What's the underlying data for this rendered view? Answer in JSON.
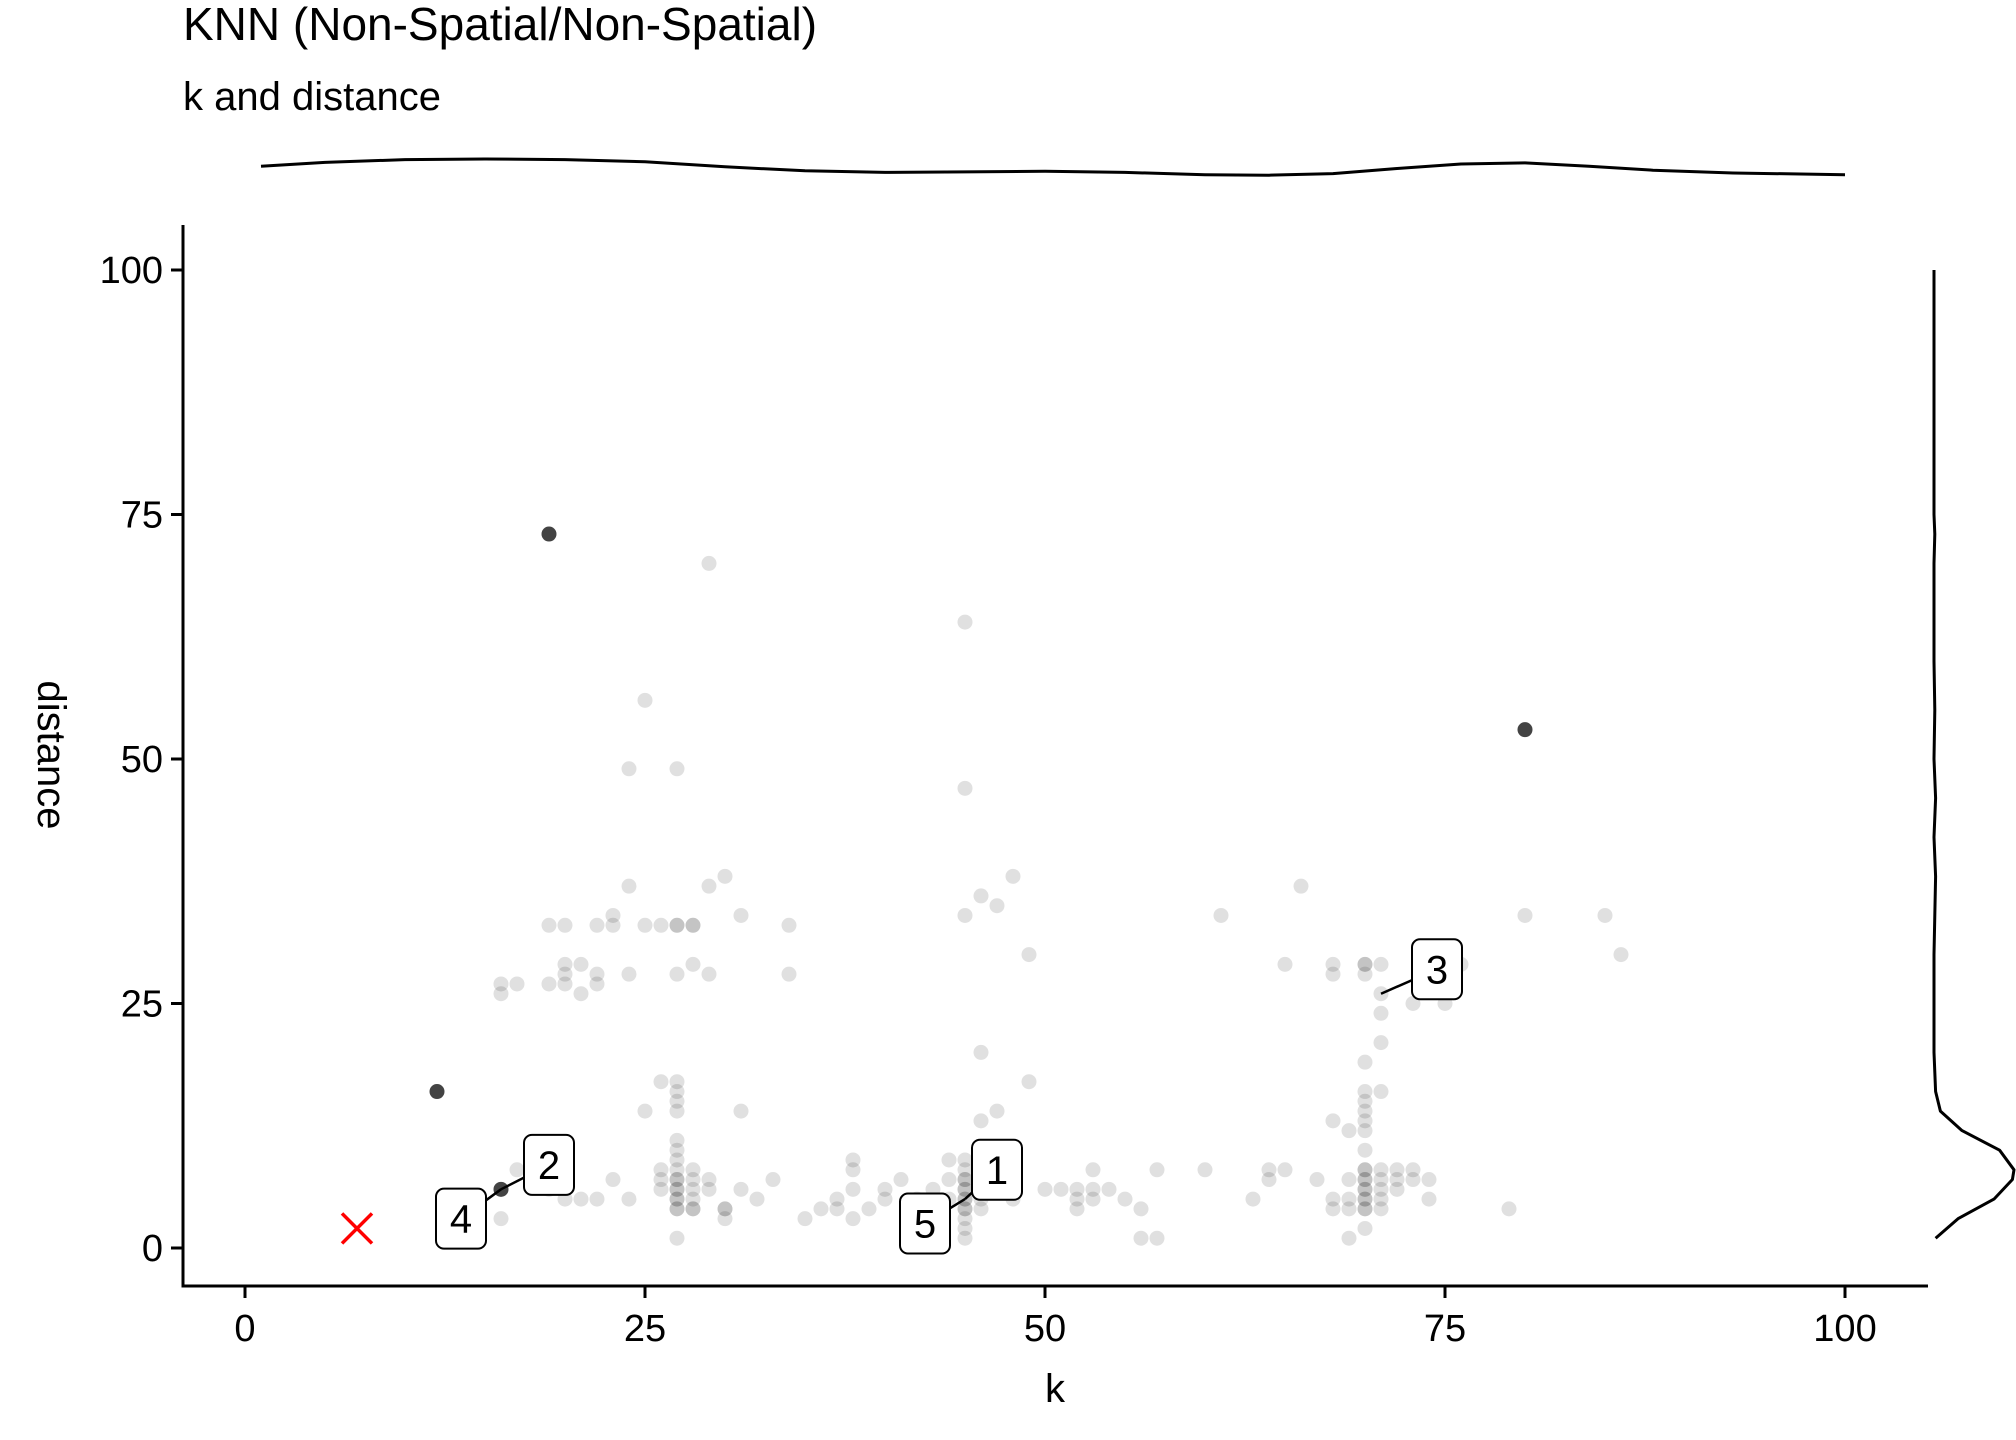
{
  "chart_data": {
    "type": "scatter",
    "title": "KNN (Non-Spatial/Non-Spatial)",
    "subtitle": "k and distance",
    "xlabel": "k",
    "ylabel": "distance",
    "xlim": [
      -2,
      105
    ],
    "ylim": [
      -4,
      105
    ],
    "xticks": [
      0,
      25,
      50,
      75,
      100
    ],
    "yticks": [
      0,
      25,
      50,
      75,
      100
    ],
    "grid": false,
    "marginal_density": [
      "top",
      "right"
    ],
    "point_color": "#000000",
    "point_alpha": 0.12,
    "points": [
      [
        12,
        16
      ],
      [
        16,
        6
      ],
      [
        16,
        3
      ],
      [
        16,
        26
      ],
      [
        16,
        27
      ],
      [
        17,
        27
      ],
      [
        17,
        8
      ],
      [
        18,
        7
      ],
      [
        19,
        73
      ],
      [
        19,
        6
      ],
      [
        19,
        27
      ],
      [
        19,
        33
      ],
      [
        20,
        5
      ],
      [
        20,
        27
      ],
      [
        20,
        28
      ],
      [
        20,
        29
      ],
      [
        20,
        33
      ],
      [
        21,
        5
      ],
      [
        21,
        26
      ],
      [
        21,
        29
      ],
      [
        22,
        5
      ],
      [
        22,
        27
      ],
      [
        22,
        28
      ],
      [
        22,
        33
      ],
      [
        23,
        7
      ],
      [
        23,
        33
      ],
      [
        23,
        34
      ],
      [
        24,
        5
      ],
      [
        24,
        28
      ],
      [
        24,
        37
      ],
      [
        24,
        49
      ],
      [
        25,
        14
      ],
      [
        25,
        33
      ],
      [
        25,
        56
      ],
      [
        26,
        6
      ],
      [
        26,
        7
      ],
      [
        26,
        8
      ],
      [
        26,
        17
      ],
      [
        26,
        33
      ],
      [
        27,
        1
      ],
      [
        27,
        4
      ],
      [
        27,
        4
      ],
      [
        27,
        5
      ],
      [
        27,
        5
      ],
      [
        27,
        6
      ],
      [
        27,
        6
      ],
      [
        27,
        7
      ],
      [
        27,
        7
      ],
      [
        27,
        8
      ],
      [
        27,
        9
      ],
      [
        27,
        10
      ],
      [
        27,
        11
      ],
      [
        27,
        14
      ],
      [
        27,
        15
      ],
      [
        27,
        16
      ],
      [
        27,
        17
      ],
      [
        27,
        28
      ],
      [
        27,
        33
      ],
      [
        27,
        33
      ],
      [
        27,
        49
      ],
      [
        28,
        4
      ],
      [
        28,
        4
      ],
      [
        28,
        5
      ],
      [
        28,
        6
      ],
      [
        28,
        7
      ],
      [
        28,
        8
      ],
      [
        28,
        29
      ],
      [
        28,
        33
      ],
      [
        28,
        33
      ],
      [
        29,
        6
      ],
      [
        29,
        7
      ],
      [
        29,
        28
      ],
      [
        29,
        37
      ],
      [
        29,
        70
      ],
      [
        30,
        3
      ],
      [
        30,
        4
      ],
      [
        30,
        4
      ],
      [
        30,
        38
      ],
      [
        31,
        6
      ],
      [
        31,
        14
      ],
      [
        31,
        34
      ],
      [
        32,
        5
      ],
      [
        33,
        7
      ],
      [
        34,
        28
      ],
      [
        34,
        33
      ],
      [
        35,
        3
      ],
      [
        36,
        4
      ],
      [
        37,
        4
      ],
      [
        37,
        5
      ],
      [
        38,
        3
      ],
      [
        38,
        6
      ],
      [
        38,
        8
      ],
      [
        38,
        9
      ],
      [
        39,
        4
      ],
      [
        40,
        5
      ],
      [
        40,
        6
      ],
      [
        41,
        7
      ],
      [
        42,
        5
      ],
      [
        43,
        6
      ],
      [
        44,
        5
      ],
      [
        44,
        7
      ],
      [
        44,
        9
      ],
      [
        45,
        1
      ],
      [
        45,
        2
      ],
      [
        45,
        3
      ],
      [
        45,
        4
      ],
      [
        45,
        4
      ],
      [
        45,
        5
      ],
      [
        45,
        5
      ],
      [
        45,
        6
      ],
      [
        45,
        6
      ],
      [
        45,
        7
      ],
      [
        45,
        7
      ],
      [
        45,
        8
      ],
      [
        45,
        9
      ],
      [
        45,
        34
      ],
      [
        45,
        47
      ],
      [
        45,
        64
      ],
      [
        46,
        4
      ],
      [
        46,
        5
      ],
      [
        46,
        6
      ],
      [
        46,
        7
      ],
      [
        46,
        8
      ],
      [
        46,
        13
      ],
      [
        46,
        20
      ],
      [
        46,
        36
      ],
      [
        47,
        7
      ],
      [
        47,
        14
      ],
      [
        47,
        35
      ],
      [
        48,
        5
      ],
      [
        48,
        6
      ],
      [
        48,
        38
      ],
      [
        49,
        17
      ],
      [
        49,
        30
      ],
      [
        50,
        6
      ],
      [
        51,
        6
      ],
      [
        52,
        4
      ],
      [
        52,
        5
      ],
      [
        52,
        6
      ],
      [
        53,
        5
      ],
      [
        53,
        6
      ],
      [
        53,
        8
      ],
      [
        54,
        6
      ],
      [
        55,
        5
      ],
      [
        56,
        1
      ],
      [
        56,
        4
      ],
      [
        57,
        1
      ],
      [
        57,
        8
      ],
      [
        60,
        8
      ],
      [
        61,
        34
      ],
      [
        63,
        5
      ],
      [
        64,
        7
      ],
      [
        64,
        8
      ],
      [
        65,
        8
      ],
      [
        65,
        29
      ],
      [
        66,
        37
      ],
      [
        67,
        7
      ],
      [
        68,
        4
      ],
      [
        68,
        5
      ],
      [
        68,
        13
      ],
      [
        68,
        28
      ],
      [
        68,
        29
      ],
      [
        69,
        1
      ],
      [
        69,
        4
      ],
      [
        69,
        5
      ],
      [
        69,
        7
      ],
      [
        69,
        12
      ],
      [
        70,
        2
      ],
      [
        70,
        4
      ],
      [
        70,
        4
      ],
      [
        70,
        5
      ],
      [
        70,
        5
      ],
      [
        70,
        6
      ],
      [
        70,
        6
      ],
      [
        70,
        7
      ],
      [
        70,
        7
      ],
      [
        70,
        8
      ],
      [
        70,
        8
      ],
      [
        70,
        10
      ],
      [
        70,
        12
      ],
      [
        70,
        13
      ],
      [
        70,
        14
      ],
      [
        70,
        15
      ],
      [
        70,
        16
      ],
      [
        70,
        19
      ],
      [
        70,
        28
      ],
      [
        70,
        29
      ],
      [
        70,
        29
      ],
      [
        71,
        4
      ],
      [
        71,
        5
      ],
      [
        71,
        6
      ],
      [
        71,
        7
      ],
      [
        71,
        8
      ],
      [
        71,
        16
      ],
      [
        71,
        21
      ],
      [
        71,
        24
      ],
      [
        71,
        26
      ],
      [
        71,
        29
      ],
      [
        72,
        6
      ],
      [
        72,
        7
      ],
      [
        72,
        8
      ],
      [
        73,
        7
      ],
      [
        73,
        8
      ],
      [
        73,
        25
      ],
      [
        74,
        5
      ],
      [
        74,
        7
      ],
      [
        75,
        25
      ],
      [
        76,
        29
      ],
      [
        79,
        4
      ],
      [
        80,
        34
      ],
      [
        80,
        53
      ],
      [
        85,
        34
      ],
      [
        86,
        30
      ]
    ],
    "highlighted_points": [
      [
        19,
        73
      ],
      [
        12,
        16
      ],
      [
        80,
        53
      ],
      [
        16,
        6
      ]
    ],
    "query_point": {
      "x": 7,
      "y": 2,
      "color": "#ff0000",
      "marker": "x"
    },
    "labels": [
      {
        "text": "1",
        "x": 45,
        "y": 5,
        "lx": 47,
        "ly": 8
      },
      {
        "text": "2",
        "x": 16,
        "y": 6,
        "lx": 19,
        "ly": 8.5
      },
      {
        "text": "3",
        "x": 71,
        "y": 26,
        "lx": 74.5,
        "ly": 28.5
      },
      {
        "text": "4",
        "x": 16,
        "y": 6,
        "lx": 13.5,
        "ly": 3
      },
      {
        "text": "5",
        "x": 45,
        "y": 5,
        "lx": 42.5,
        "ly": 2.5
      }
    ],
    "density_x": [
      [
        1,
        0.87
      ],
      [
        5,
        0.94
      ],
      [
        10,
        0.99
      ],
      [
        15,
        1.0
      ],
      [
        20,
        0.99
      ],
      [
        25,
        0.95
      ],
      [
        30,
        0.86
      ],
      [
        35,
        0.79
      ],
      [
        40,
        0.76
      ],
      [
        45,
        0.77
      ],
      [
        50,
        0.78
      ],
      [
        55,
        0.76
      ],
      [
        60,
        0.72
      ],
      [
        64,
        0.71
      ],
      [
        68,
        0.74
      ],
      [
        72,
        0.83
      ],
      [
        76,
        0.91
      ],
      [
        80,
        0.93
      ],
      [
        84,
        0.87
      ],
      [
        88,
        0.8
      ],
      [
        93,
        0.75
      ],
      [
        100,
        0.72
      ]
    ],
    "density_y": [
      [
        1,
        0.02
      ],
      [
        3,
        0.3
      ],
      [
        5,
        0.75
      ],
      [
        7,
        0.98
      ],
      [
        8,
        1.0
      ],
      [
        10,
        0.82
      ],
      [
        12,
        0.35
      ],
      [
        14,
        0.08
      ],
      [
        16,
        0.02
      ],
      [
        20,
        0.0
      ],
      [
        25,
        0.0
      ],
      [
        30,
        0.0
      ],
      [
        34,
        0.01
      ],
      [
        38,
        0.02
      ],
      [
        42,
        0.0
      ],
      [
        46,
        0.02
      ],
      [
        50,
        0.0
      ],
      [
        55,
        0.01
      ],
      [
        60,
        0.0
      ],
      [
        65,
        0.0
      ],
      [
        70,
        0.0
      ],
      [
        73,
        0.01
      ],
      [
        75,
        0.0
      ],
      [
        80,
        0.0
      ],
      [
        90,
        0.0
      ],
      [
        100,
        0.0
      ]
    ]
  }
}
